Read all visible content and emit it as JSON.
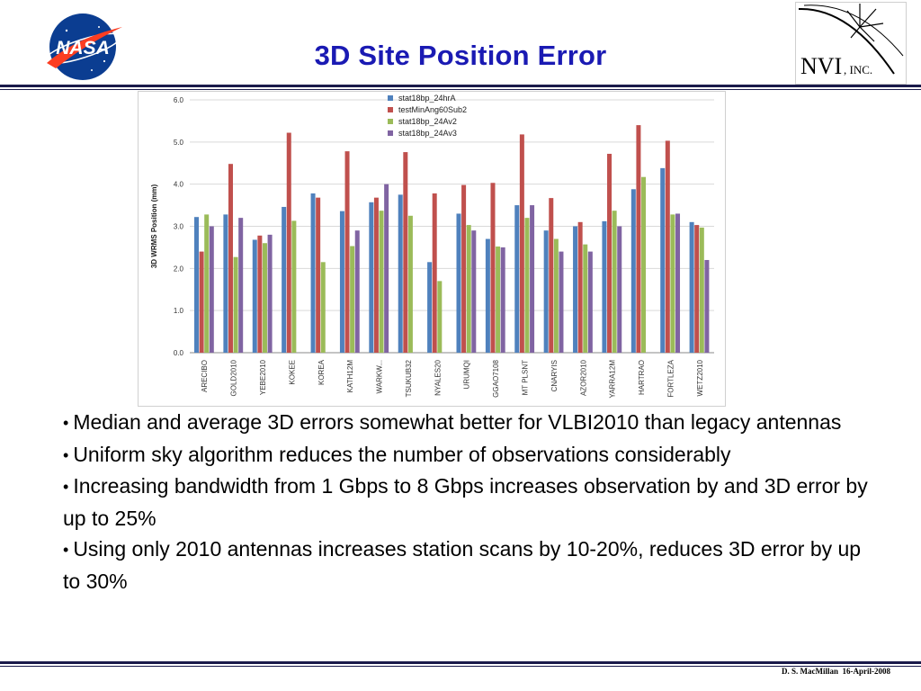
{
  "slide": {
    "title": "3D Site Position Error",
    "nasa_logo_text": "NASA",
    "nvi_logo_text": "NVI",
    "nvi_logo_suffix": ", INC.",
    "footer_author": "D. S. MacMillan",
    "footer_date": "16-April-2008",
    "colors": {
      "title": "#1a1ab3",
      "rule": "#1a1a4a"
    }
  },
  "bullets": [
    "Median and average 3D errors somewhat  better for VLBI2010 than legacy antennas",
    "Uniform sky algorithm reduces the number of observations considerably",
    "Increasing bandwidth from 1 Gbps to 8 Gbps increases observation by and 3D error by up to 25%",
    "Using only 2010 antennas increases station scans by 10-20%, reduces 3D error by up to 30%"
  ],
  "chart_data": {
    "type": "bar",
    "title": "",
    "xlabel": "",
    "ylabel": "3D WRMS Position (mm)",
    "ylim": [
      0,
      6
    ],
    "yticks": [
      "0.0",
      "1.0",
      "2.0",
      "3.0",
      "4.0",
      "5.0",
      "6.0"
    ],
    "grid": true,
    "legend_position": "top-center",
    "categories": [
      "ARECIBO",
      "GOLD2010",
      "YEBE2010",
      "KOKEE",
      "KOREA",
      "KATH12M",
      "WARKW...",
      "TSUKUB32",
      "NYALES20",
      "URUMQI",
      "GGAO7108",
      "MT PLSNT",
      "CNARYIS",
      "AZOR2010",
      "YARRA12M",
      "HARTRAO",
      "FORTLEZA",
      "WETZ2010"
    ],
    "series": [
      {
        "name": "stat18bp_24hrA",
        "color": "#4f81bd",
        "values": [
          3.22,
          3.28,
          2.68,
          3.46,
          3.78,
          3.36,
          3.57,
          3.75,
          2.15,
          3.3,
          2.7,
          3.5,
          2.9,
          3.0,
          3.12,
          3.88,
          4.38,
          3.1
        ]
      },
      {
        "name": "testMinAng60Sub2",
        "color": "#c0504d",
        "values": [
          2.4,
          4.48,
          2.78,
          5.22,
          3.68,
          4.78,
          3.68,
          4.76,
          3.78,
          3.98,
          4.03,
          5.18,
          3.67,
          3.1,
          4.72,
          5.4,
          5.03,
          3.03
        ]
      },
      {
        "name": "stat18bp_24Av2",
        "color": "#9bbb59",
        "values": [
          3.28,
          2.27,
          2.6,
          3.13,
          2.15,
          2.53,
          3.37,
          3.25,
          1.7,
          3.03,
          2.52,
          3.2,
          2.7,
          2.57,
          3.37,
          4.17,
          3.28,
          2.97
        ]
      },
      {
        "name": "stat18bp_24Av3",
        "color": "#8064a2",
        "values": [
          3.0,
          3.2,
          2.8,
          null,
          null,
          2.9,
          4.0,
          null,
          null,
          2.9,
          2.5,
          3.5,
          2.4,
          2.4,
          3.0,
          null,
          3.3,
          2.2
        ]
      }
    ]
  }
}
